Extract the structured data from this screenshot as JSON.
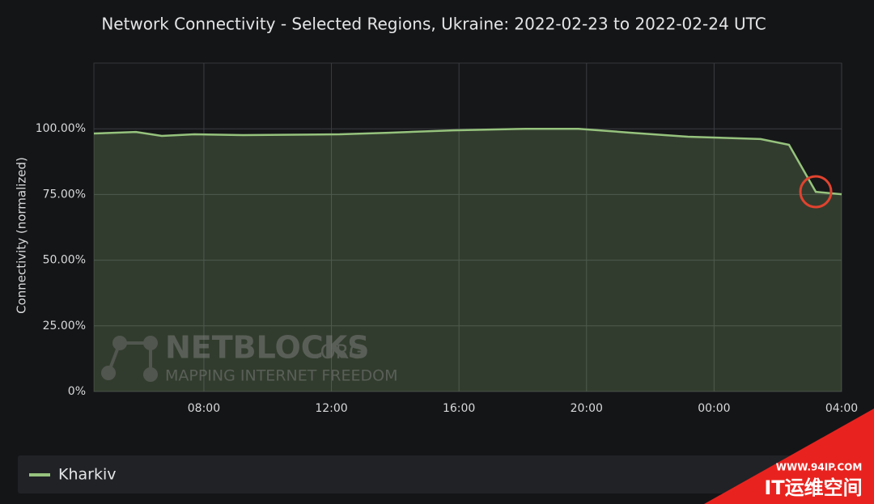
{
  "chart_data": {
    "type": "line",
    "title": "Network Connectivity - Selected Regions, Ukraine: 2022-02-23 to 2022-02-24 UTC",
    "y_label": "Connectivity (normalized)",
    "x": [
      4.55,
      5.87,
      6.68,
      7.7,
      9.22,
      12.26,
      13.79,
      15.82,
      18.1,
      19.75,
      21.4,
      23.18,
      25.46,
      26.35,
      27.19,
      28
    ],
    "series": [
      {
        "name": "Kharkiv",
        "color": "#96c37d",
        "values": [
          98.2,
          98.8,
          97.3,
          97.9,
          97.6,
          97.9,
          98.5,
          99.4,
          100.0,
          100.0,
          98.5,
          97.0,
          96.1,
          93.9,
          76.0,
          75.1
        ]
      }
    ],
    "xlim": [
      4.55,
      28
    ],
    "xticks": [
      {
        "value": 8,
        "label": "08:00"
      },
      {
        "value": 12,
        "label": "12:00"
      },
      {
        "value": 16,
        "label": "16:00"
      },
      {
        "value": 20,
        "label": "20:00"
      },
      {
        "value": 24,
        "label": "00:00"
      },
      {
        "value": 28,
        "label": "04:00"
      }
    ],
    "ylim": [
      0,
      125
    ],
    "yticks": [
      {
        "value": 0,
        "label": "0%"
      },
      {
        "value": 25,
        "label": "25.00%"
      },
      {
        "value": 50,
        "label": "50.00%"
      },
      {
        "value": 75,
        "label": "75.00%"
      },
      {
        "value": 100,
        "label": "100.00%"
      }
    ],
    "grid": true,
    "watermark": {
      "brand": "NETBLOCKS",
      "suffix": ".ORG",
      "tagline": "MAPPING INTERNET FREEDOM"
    },
    "corner_mark": {
      "url": "WWW.94IP.COM",
      "name": "IT运维空间"
    }
  }
}
